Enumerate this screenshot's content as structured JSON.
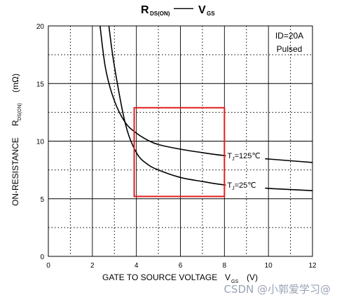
{
  "chart_data": {
    "type": "line",
    "title": {
      "main": "R",
      "main_sub": "DS(ON)",
      "separator": "——",
      "right": "V",
      "right_sub": "GS"
    },
    "xlabel": {
      "text": "GATE TO SOURCE VOLTAGE",
      "sym": "V",
      "sub": "GS",
      "unit": "(V)"
    },
    "ylabel": {
      "text": "ON-RESISTANCE",
      "sym": "R",
      "sub": "DS(ON)",
      "unit": "(mΩ)"
    },
    "xlim": [
      0,
      12
    ],
    "ylim": [
      0,
      20
    ],
    "x_ticks": [
      0,
      2,
      4,
      6,
      8,
      10,
      12
    ],
    "y_ticks": [
      0,
      5,
      10,
      15,
      20
    ],
    "x_minor_ticks": [
      1,
      3,
      5,
      7,
      9,
      11
    ],
    "y_minor_ticks": [
      2.5,
      7.5,
      12.5,
      17.5
    ],
    "grid": true,
    "conditions": [
      "ID=20A",
      "Pulsed"
    ],
    "series": [
      {
        "name": "TJ=125℃",
        "label_main": "T",
        "label_sub": "J",
        "label_rest": "=125℃",
        "label_at": 8,
        "color": "#000000",
        "x": [
          2.35,
          2.6,
          3.0,
          3.5,
          4.0,
          4.5,
          5.0,
          6.0,
          7.0,
          8.0,
          9.0,
          10.0,
          11.0,
          12.0
        ],
        "y": [
          20.0,
          16.3,
          13.5,
          11.6,
          10.7,
          10.1,
          9.7,
          9.3,
          9.0,
          8.75,
          8.6,
          8.45,
          8.3,
          8.15
        ]
      },
      {
        "name": "TJ=25℃",
        "label_main": "T",
        "label_sub": "J",
        "label_rest": "=25℃",
        "label_at": 8,
        "color": "#000000",
        "x": [
          2.75,
          3.0,
          3.5,
          4.0,
          4.5,
          5.0,
          6.0,
          7.0,
          8.0,
          9.0,
          10.0,
          11.0,
          12.0
        ],
        "y": [
          20.0,
          16.5,
          11.5,
          9.0,
          8.0,
          7.5,
          6.85,
          6.5,
          6.2,
          6.05,
          5.9,
          5.8,
          5.7
        ]
      }
    ],
    "highlight_box": {
      "x": [
        3.9,
        8.0
      ],
      "y": [
        5.2,
        12.9
      ],
      "color": "#e02020"
    }
  },
  "watermark": "CSDN @小郭爱学习@"
}
